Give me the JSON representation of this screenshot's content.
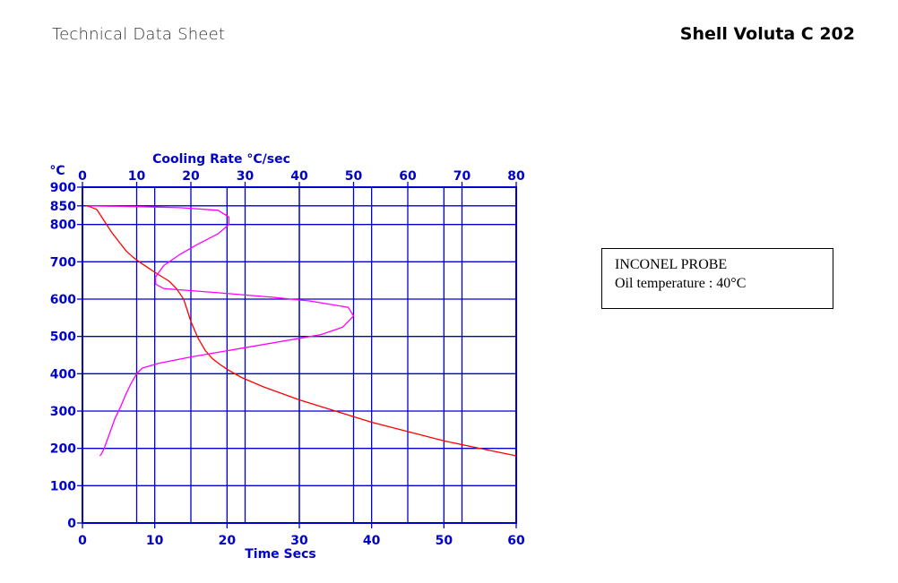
{
  "header": {
    "left_title": "Technical Data Sheet",
    "product_name": "Shell Voluta C 202"
  },
  "legend_box": {
    "line1": "INCONEL PROBE",
    "line2": "Oil temperature : 40°C"
  },
  "colors": {
    "axis": "#0000cc",
    "temperature_curve": "#ff0000",
    "cooling_rate_curve": "#ff00ff"
  },
  "chart_data": {
    "type": "line",
    "ylabel": "°C",
    "xlabel": "Time  Secs",
    "x2label": "Cooling Rate  °C/sec",
    "ylim": [
      0,
      900
    ],
    "xlim": [
      0,
      60
    ],
    "x2lim": [
      0,
      80
    ],
    "yticks": [
      0,
      100,
      200,
      300,
      400,
      500,
      600,
      700,
      800,
      850,
      900
    ],
    "xticks": [
      0,
      10,
      20,
      30,
      40,
      50,
      60
    ],
    "x2ticks": [
      0,
      10,
      20,
      30,
      40,
      50,
      60,
      70,
      80
    ],
    "grid": true,
    "series": [
      {
        "axis": "time",
        "color": "#ff0000",
        "points": [
          [
            0.5,
            850
          ],
          [
            1,
            848
          ],
          [
            2,
            840
          ],
          [
            3,
            810
          ],
          [
            4,
            780
          ],
          [
            5,
            755
          ],
          [
            6,
            730
          ],
          [
            7,
            712
          ],
          [
            8,
            698
          ],
          [
            9,
            685
          ],
          [
            10,
            672
          ],
          [
            11,
            660
          ],
          [
            12,
            648
          ],
          [
            13,
            628
          ],
          [
            14,
            600
          ],
          [
            14.5,
            570
          ],
          [
            15,
            540
          ],
          [
            16,
            495
          ],
          [
            17,
            462
          ],
          [
            18,
            440
          ],
          [
            19,
            425
          ],
          [
            20,
            412
          ],
          [
            22,
            390
          ],
          [
            25,
            365
          ],
          [
            30,
            330
          ],
          [
            35,
            300
          ],
          [
            40,
            270
          ],
          [
            45,
            245
          ],
          [
            50,
            220
          ],
          [
            55,
            200
          ],
          [
            60,
            180
          ]
        ]
      },
      {
        "axis": "cooling_rate",
        "color": "#ff00ff",
        "points": [
          [
            1,
            850
          ],
          [
            10,
            848
          ],
          [
            18,
            845
          ],
          [
            25,
            838
          ],
          [
            27,
            820
          ],
          [
            27,
            800
          ],
          [
            25,
            775
          ],
          [
            21,
            745
          ],
          [
            18,
            720
          ],
          [
            15,
            690
          ],
          [
            13.5,
            660
          ],
          [
            13.5,
            640
          ],
          [
            15,
            628
          ],
          [
            25,
            617
          ],
          [
            35,
            605
          ],
          [
            42,
            595
          ],
          [
            49,
            578
          ],
          [
            50,
            555
          ],
          [
            48,
            525
          ],
          [
            44,
            505
          ],
          [
            40,
            495
          ],
          [
            30,
            470
          ],
          [
            20,
            445
          ],
          [
            14,
            428
          ],
          [
            11,
            415
          ],
          [
            10,
            400
          ],
          [
            9,
            375
          ],
          [
            8,
            345
          ],
          [
            7,
            310
          ],
          [
            6,
            280
          ],
          [
            5,
            240
          ],
          [
            4,
            200
          ],
          [
            3.5,
            185
          ],
          [
            3.2,
            180
          ]
        ]
      }
    ]
  }
}
